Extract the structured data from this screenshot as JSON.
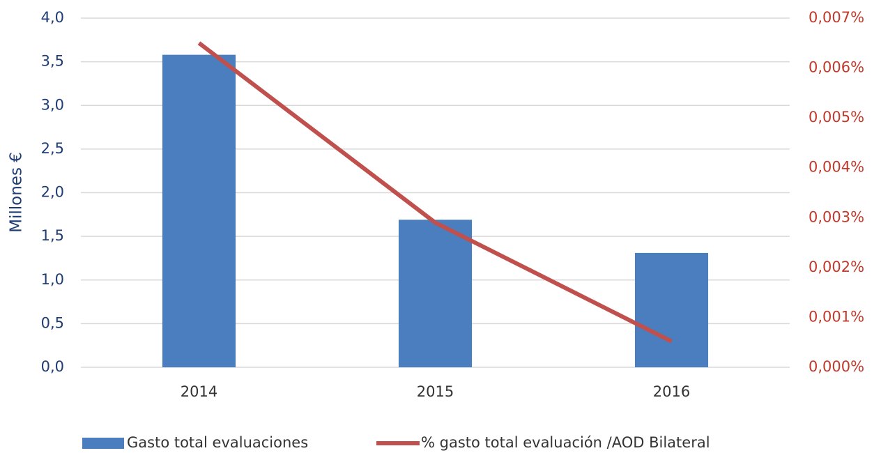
{
  "chart_data": {
    "type": "bar",
    "categories": [
      "2014",
      "2015",
      "2016"
    ],
    "y_label": "Millones €",
    "series": [
      {
        "name": "Gasto total evaluaciones",
        "type": "bar",
        "axis": "y",
        "color": "#4a7ebf",
        "values": [
          3.58,
          1.69,
          1.31
        ]
      },
      {
        "name": "% gasto total evaluación /AOD Bilateral",
        "type": "line",
        "axis": "y2",
        "color": "#c0504d",
        "values": [
          0.0065,
          0.0029,
          0.00052
        ]
      }
    ],
    "ylim": [
      0,
      4
    ],
    "yticks": [
      {
        "value": 0,
        "label": "0,0"
      },
      {
        "value": 0.5,
        "label": "0,5"
      },
      {
        "value": 1,
        "label": "1,0"
      },
      {
        "value": 1.5,
        "label": "1,5"
      },
      {
        "value": 2,
        "label": "2,0"
      },
      {
        "value": 2.5,
        "label": "2,5"
      },
      {
        "value": 3,
        "label": "3,0"
      },
      {
        "value": 3.5,
        "label": "3,5"
      },
      {
        "value": 4,
        "label": "4,0"
      }
    ],
    "y2lim": [
      0,
      0.007
    ],
    "y2ticks": [
      {
        "value": 0,
        "label": "0,000%"
      },
      {
        "value": 0.001,
        "label": "0,001%"
      },
      {
        "value": 0.002,
        "label": "0,002%"
      },
      {
        "value": 0.003,
        "label": "0,003%"
      },
      {
        "value": 0.004,
        "label": "0,004%"
      },
      {
        "value": 0.005,
        "label": "0,005%"
      },
      {
        "value": 0.006,
        "label": "0,006%"
      },
      {
        "value": 0.007,
        "label": "0,007%"
      }
    ],
    "grid": true,
    "legend": "bottom"
  }
}
